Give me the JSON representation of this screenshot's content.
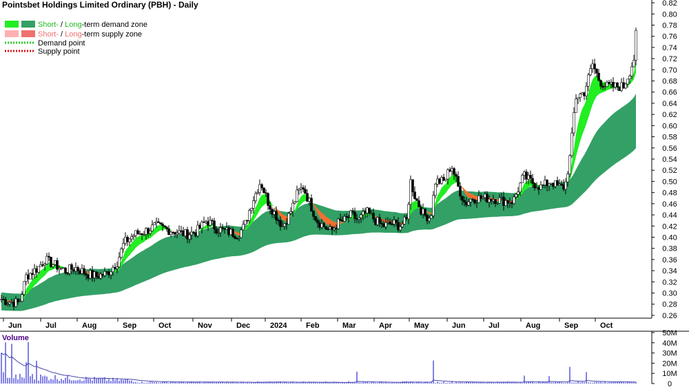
{
  "chart_data": {
    "type": "candlestick",
    "title": "Pointsbet Holdings Limited Ordinary (PBH) - Daily",
    "ylim": [
      0.255,
      0.825
    ],
    "y_ticks": [
      "0.26",
      "0.28",
      "0.30",
      "0.32",
      "0.34",
      "0.36",
      "0.38",
      "0.40",
      "0.42",
      "0.44",
      "0.46",
      "0.48",
      "0.50",
      "0.52",
      "0.54",
      "0.56",
      "0.58",
      "0.60",
      "0.62",
      "0.64",
      "0.66",
      "0.68",
      "0.70",
      "0.72",
      "0.74",
      "0.76",
      "0.78",
      "0.80",
      "0.82"
    ],
    "x_ticks": [
      "Jun",
      "Jul",
      "Aug",
      "Sep",
      "Oct",
      "Nov",
      "Dec",
      "2024",
      "Feb",
      "Mar",
      "Apr",
      "May",
      "Jun",
      "Jul",
      "Aug",
      "Sep",
      "Oct"
    ],
    "legend": [
      {
        "label_short": "Short-",
        "label_sep": " / ",
        "label_long": "Long",
        "label_rest": "-term demand zone",
        "short_color": "#22ee22",
        "long_color": "#33a066",
        "short_label_color": "#22bb22",
        "long_label_color": "#22bb22"
      },
      {
        "label_short": "Short-",
        "label_sep": " / ",
        "label_long": "Long",
        "label_rest": "-term supply zone",
        "short_color": "#ffb0b0",
        "long_color": "#f07070",
        "short_label_color": "#f07070",
        "long_label_color": "#f07070"
      },
      {
        "label": "Demand point",
        "color": "#22cc22"
      },
      {
        "label": "Supply point",
        "color": "#dd1111"
      }
    ],
    "price_anchors": [
      [
        0,
        0.29
      ],
      [
        10,
        0.285
      ],
      [
        28,
        0.282
      ],
      [
        38,
        0.33
      ],
      [
        55,
        0.345
      ],
      [
        65,
        0.36
      ],
      [
        80,
        0.35
      ],
      [
        95,
        0.34
      ],
      [
        110,
        0.345
      ],
      [
        125,
        0.335
      ],
      [
        140,
        0.33
      ],
      [
        155,
        0.335
      ],
      [
        170,
        0.355
      ],
      [
        180,
        0.39
      ],
      [
        195,
        0.405
      ],
      [
        210,
        0.41
      ],
      [
        225,
        0.42
      ],
      [
        240,
        0.415
      ],
      [
        255,
        0.41
      ],
      [
        270,
        0.405
      ],
      [
        285,
        0.41
      ],
      [
        300,
        0.43
      ],
      [
        315,
        0.415
      ],
      [
        330,
        0.41
      ],
      [
        345,
        0.405
      ],
      [
        355,
        0.42
      ],
      [
        365,
        0.46
      ],
      [
        378,
        0.5
      ],
      [
        390,
        0.46
      ],
      [
        400,
        0.44
      ],
      [
        410,
        0.42
      ],
      [
        420,
        0.44
      ],
      [
        432,
        0.48
      ],
      [
        440,
        0.49
      ],
      [
        450,
        0.46
      ],
      [
        460,
        0.43
      ],
      [
        470,
        0.42
      ],
      [
        480,
        0.41
      ],
      [
        490,
        0.425
      ],
      [
        500,
        0.43
      ],
      [
        510,
        0.44
      ],
      [
        520,
        0.43
      ],
      [
        532,
        0.445
      ],
      [
        545,
        0.43
      ],
      [
        555,
        0.42
      ],
      [
        570,
        0.425
      ],
      [
        580,
        0.42
      ],
      [
        590,
        0.43
      ],
      [
        596,
        0.5
      ],
      [
        603,
        0.47
      ],
      [
        615,
        0.44
      ],
      [
        625,
        0.435
      ],
      [
        632,
        0.5
      ],
      [
        645,
        0.5
      ],
      [
        655,
        0.53
      ],
      [
        665,
        0.49
      ],
      [
        675,
        0.46
      ],
      [
        685,
        0.47
      ],
      [
        700,
        0.47
      ],
      [
        715,
        0.47
      ],
      [
        730,
        0.465
      ],
      [
        745,
        0.465
      ],
      [
        760,
        0.51
      ],
      [
        770,
        0.5
      ],
      [
        785,
        0.49
      ],
      [
        800,
        0.5
      ],
      [
        810,
        0.49
      ],
      [
        820,
        0.49
      ],
      [
        828,
        0.55
      ],
      [
        835,
        0.65
      ],
      [
        848,
        0.66
      ],
      [
        860,
        0.71
      ],
      [
        870,
        0.68
      ],
      [
        880,
        0.67
      ],
      [
        895,
        0.67
      ],
      [
        905,
        0.67
      ],
      [
        915,
        0.7
      ],
      [
        920,
        0.72
      ],
      [
        925,
        0.79
      ]
    ],
    "volume": {
      "label": "Volume",
      "ylim": [
        0,
        50000000
      ],
      "y_ticks": [
        "0",
        "10M",
        "20M",
        "30M",
        "40M",
        "50M"
      ]
    }
  }
}
